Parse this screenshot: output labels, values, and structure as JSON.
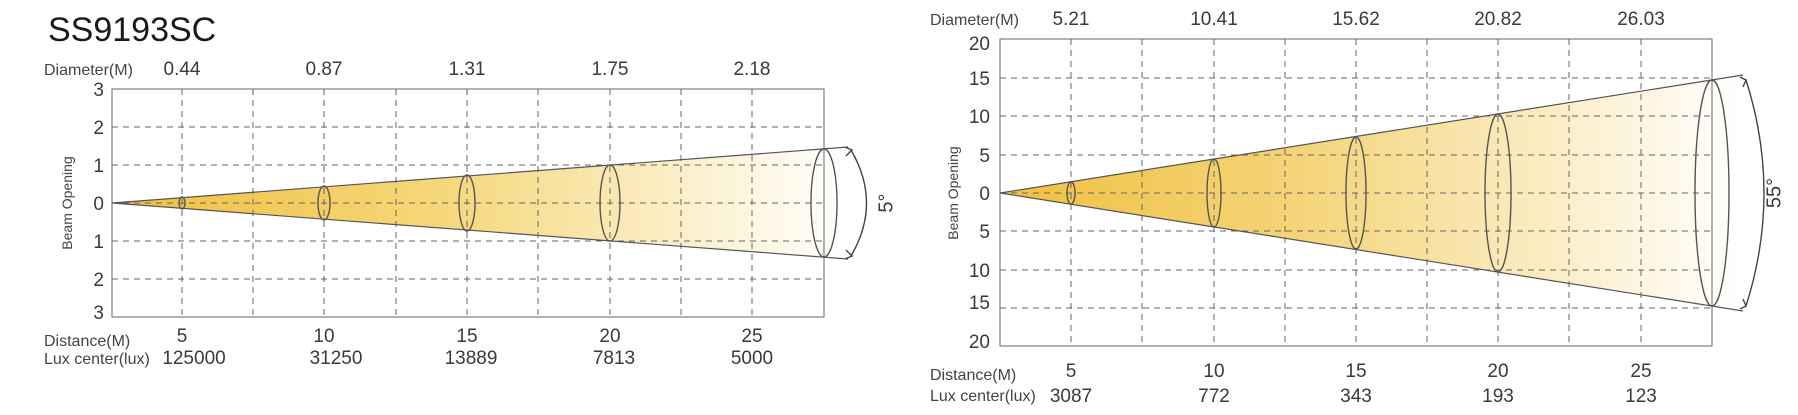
{
  "title": "SS9193SC",
  "colors": {
    "beam_warm": "#f0c040",
    "beam_fade": "#ffffff",
    "grid": "#666666"
  },
  "chart_data": [
    {
      "type": "beam-diagram",
      "diameter_label": "Diameter(M)",
      "diameters": [
        "0.44",
        "0.87",
        "1.31",
        "1.75",
        "2.18"
      ],
      "y_axis_title": "Beam Opening",
      "y_ticks": [
        "3",
        "2",
        "1",
        "0",
        "1",
        "2",
        "3"
      ],
      "beam_angle": "5°",
      "distance_label": "Distance(M)",
      "distances": [
        "5",
        "10",
        "15",
        "20",
        "25"
      ],
      "lux_label": "Lux center(lux)",
      "lux": [
        "125000",
        "31250",
        "13889",
        "7813",
        "5000"
      ]
    },
    {
      "type": "beam-diagram",
      "diameter_label": "Diameter(M)",
      "diameters": [
        "5.21",
        "10.41",
        "15.62",
        "20.82",
        "26.03"
      ],
      "y_axis_title": "Beam Opening",
      "y_ticks": [
        "20",
        "15",
        "10",
        "5",
        "0",
        "5",
        "10",
        "15",
        "20"
      ],
      "beam_angle": "55°",
      "distance_label": "Distance(M)",
      "distances": [
        "5",
        "10",
        "15",
        "20",
        "25"
      ],
      "lux_label": "Lux center(lux)",
      "lux": [
        "3087",
        "772",
        "343",
        "193",
        "123"
      ]
    }
  ]
}
